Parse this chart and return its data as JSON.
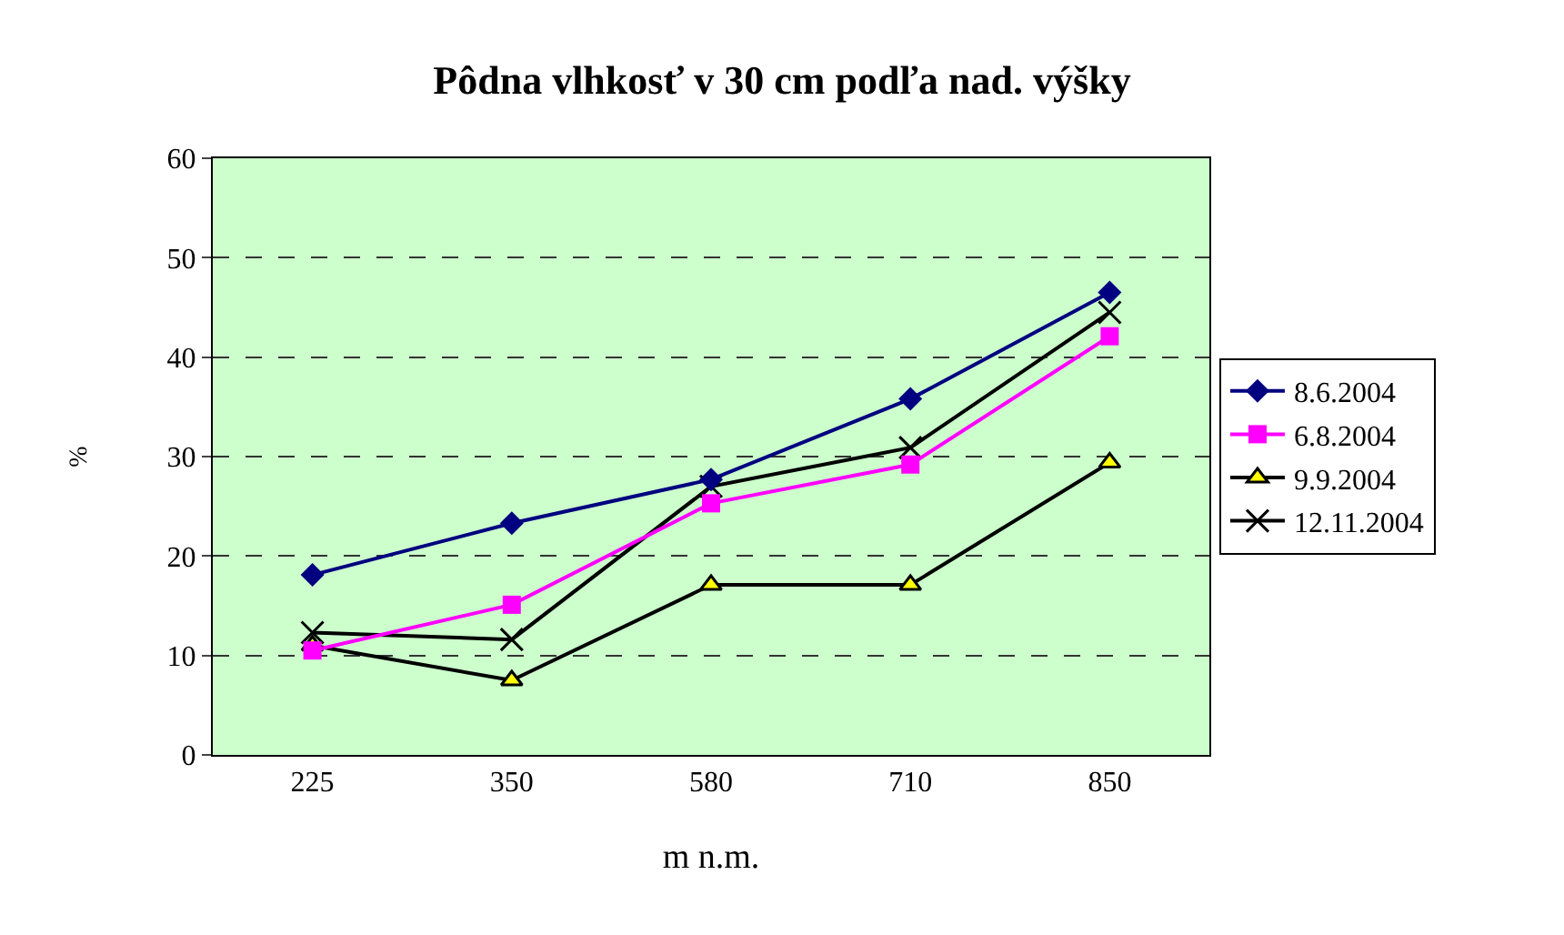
{
  "chart_data": {
    "type": "line",
    "title": "Pôdna vlhkosť v 30 cm podľa nad. výšky",
    "xlabel": "m n.m.",
    "ylabel": "%",
    "categories": [
      "225",
      "350",
      "580",
      "710",
      "850"
    ],
    "series": [
      {
        "name": "8.6.2004",
        "color": "#000080",
        "marker": "diamond",
        "values": [
          18.1,
          23.3,
          27.7,
          35.8,
          46.5
        ]
      },
      {
        "name": "6.8.2004",
        "color": "#ff00ff",
        "marker": "square",
        "values": [
          10.5,
          15.1,
          25.3,
          29.2,
          42.1
        ]
      },
      {
        "name": "9.9.2004",
        "color": "#000000",
        "colors": [
          "#ffff00",
          "#ffff00",
          "#ffff00",
          "#ffff00",
          "#ffff00"
        ],
        "marker": "triangle",
        "values": [
          11.0,
          7.5,
          17.1,
          17.1,
          29.4
        ]
      },
      {
        "name": "12.11.2004",
        "color": "#000000",
        "marker": "cross",
        "values": [
          12.3,
          11.6,
          27.0,
          30.9,
          44.5
        ]
      }
    ],
    "ylim": [
      0,
      60
    ],
    "yticks": [
      0,
      10,
      20,
      30,
      40,
      50,
      60
    ],
    "grid": "y",
    "legend": "right",
    "line_style": "solid"
  }
}
